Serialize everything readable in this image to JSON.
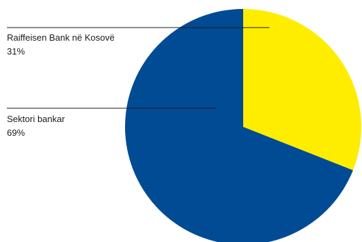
{
  "chart_data": {
    "type": "pie",
    "title": "",
    "slices": [
      {
        "label": "Raiffeisen Bank në Kosovë",
        "value": 31,
        "value_label": "31%",
        "color": "#FFED00"
      },
      {
        "label": "Sektori bankar",
        "value": 69,
        "value_label": "69%",
        "color": "#004B93"
      }
    ],
    "start_angle_deg": 0,
    "direction": "clockwise",
    "legend": "none"
  }
}
